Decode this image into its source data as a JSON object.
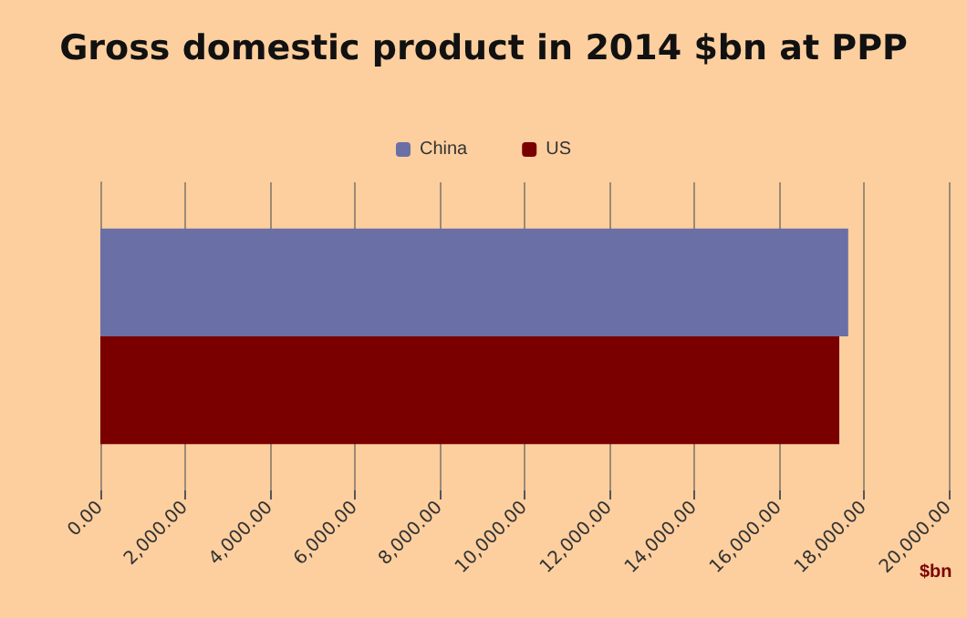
{
  "chart_data": {
    "type": "bar",
    "orientation": "horizontal",
    "title": "Gross domestic product in 2014 $bn at PPP",
    "xlabel": "$bn",
    "categories": [
      null
    ],
    "series": [
      {
        "name": "China",
        "color": "#6a6fa6",
        "values": [
          17630
        ]
      },
      {
        "name": "US",
        "color": "#7a0000",
        "values": [
          17420
        ]
      }
    ],
    "xlim": [
      0,
      20000
    ],
    "xticks": [
      {
        "value": 0,
        "label": "0.00"
      },
      {
        "value": 2000,
        "label": "2,000.00"
      },
      {
        "value": 4000,
        "label": "4,000.00"
      },
      {
        "value": 6000,
        "label": "6,000.00"
      },
      {
        "value": 8000,
        "label": "8,000.00"
      },
      {
        "value": 10000,
        "label": "10,000.00"
      },
      {
        "value": 12000,
        "label": "12,000.00"
      },
      {
        "value": 14000,
        "label": "14,000.00"
      },
      {
        "value": 16000,
        "label": "16,000.00"
      },
      {
        "value": 18000,
        "label": "18,000.00"
      },
      {
        "value": 20000,
        "label": "20,000.00"
      }
    ],
    "grid": "x",
    "legend": "top"
  }
}
